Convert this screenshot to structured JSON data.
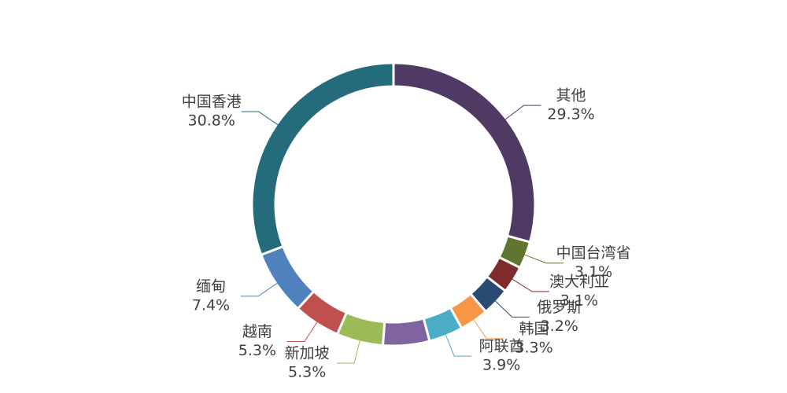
{
  "chart_data": {
    "type": "donut",
    "categories": [
      "其他",
      "中国台湾省",
      "澳大利亚",
      "俄罗斯",
      "韩国",
      "阿联酋",
      null,
      "新加坡",
      "越南",
      "缅甸",
      "中国香港"
    ],
    "values": [
      29.3,
      3.1,
      3.1,
      3.2,
      3.3,
      3.9,
      5.3,
      5.3,
      5.3,
      7.4,
      30.8
    ],
    "value_labels": [
      "29.3%",
      "3.1%",
      "3.1%",
      "3.2%",
      "3.3%",
      "3.9%",
      null,
      "5.3%",
      "5.3%",
      "7.4%",
      "30.8%"
    ],
    "colors": [
      "#4e3a62",
      "#5f7530",
      "#7f2b2b",
      "#2a4a73",
      "#f79646",
      "#4bacc6",
      "#8064a2",
      "#9bbb59",
      "#c0504d",
      "#4f81bd",
      "#246b7b"
    ]
  }
}
